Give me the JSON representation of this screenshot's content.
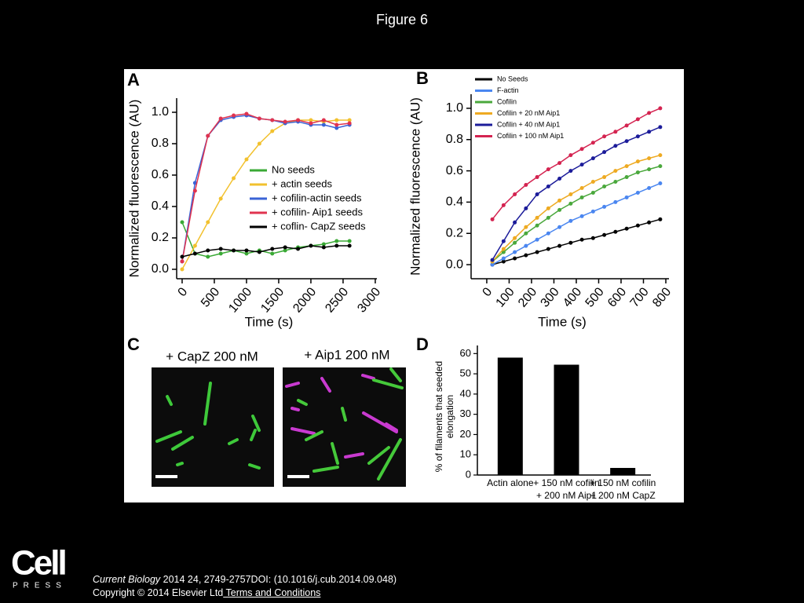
{
  "title": "Figure 6",
  "chart_data": [
    {
      "type": "line",
      "label": "A",
      "xlabel": "Time (s)",
      "ylabel": "Normalized fluorescence (AU)",
      "xlim": [
        -85,
        3025
      ],
      "ylim": [
        -0.06,
        1.09
      ],
      "xticks": [
        0,
        500,
        1000,
        1500,
        2000,
        2500,
        3000
      ],
      "yticks": [
        {
          "value": 0,
          "label": "0.0"
        },
        0.2,
        0.4,
        0.6,
        0.8,
        {
          "value": 1,
          "label": "1.0"
        }
      ],
      "x": [
        0,
        200,
        400,
        600,
        800,
        1000,
        1200,
        1400,
        1600,
        1800,
        2000,
        2200,
        2400,
        2600
      ],
      "series": [
        {
          "name": "No seeds",
          "color": "#3aa935",
          "values": [
            0.3,
            0.1,
            0.08,
            0.1,
            0.12,
            0.1,
            0.12,
            0.1,
            0.12,
            0.14,
            0.15,
            0.16,
            0.18,
            0.18
          ]
        },
        {
          "name": "+ actin seeds",
          "color": "#f2c12e",
          "values": [
            0,
            0.15,
            0.3,
            0.45,
            0.58,
            0.7,
            0.8,
            0.88,
            0.93,
            0.95,
            0.95,
            0.94,
            0.95,
            0.95
          ]
        },
        {
          "name": "+ cofilin-actin seeds",
          "color": "#3a63d6",
          "values": [
            0.05,
            0.55,
            0.85,
            0.95,
            0.97,
            0.98,
            0.96,
            0.95,
            0.93,
            0.94,
            0.92,
            0.92,
            0.9,
            0.92
          ]
        },
        {
          "name": "+ cofilin- Aip1 seeds",
          "color": "#e0334f",
          "values": [
            0.05,
            0.5,
            0.85,
            0.96,
            0.98,
            0.99,
            0.96,
            0.95,
            0.94,
            0.95,
            0.93,
            0.95,
            0.92,
            0.93
          ]
        },
        {
          "name": "+ coflin- CapZ seeds",
          "color": "#000000",
          "values": [
            0.08,
            0.1,
            0.12,
            0.13,
            0.12,
            0.12,
            0.11,
            0.13,
            0.14,
            0.13,
            0.15,
            0.14,
            0.15,
            0.15
          ]
        }
      ]
    },
    {
      "type": "line",
      "label": "B",
      "xlabel": "Time (s)",
      "ylabel": "Normalized fluorescence (AU)",
      "xlim": [
        -70,
        814
      ],
      "ylim": [
        -0.09,
        1.09
      ],
      "xticks": [
        0,
        100,
        200,
        300,
        400,
        500,
        600,
        700,
        800
      ],
      "yticks": [
        {
          "value": 0,
          "label": "0.0"
        },
        0.2,
        0.4,
        0.6,
        0.8,
        {
          "value": 1,
          "label": "1.0"
        }
      ],
      "x": [
        25,
        75,
        125,
        175,
        225,
        275,
        325,
        375,
        425,
        475,
        525,
        575,
        625,
        675,
        725,
        775
      ],
      "series": [
        {
          "name": "No Seeds",
          "color": "#000000",
          "values": [
            0,
            0.02,
            0.04,
            0.06,
            0.08,
            0.1,
            0.12,
            0.14,
            0.16,
            0.17,
            0.19,
            0.21,
            0.23,
            0.25,
            0.27,
            0.29
          ]
        },
        {
          "name": "F-actin",
          "color": "#4a86f0",
          "values": [
            0,
            0.04,
            0.08,
            0.12,
            0.16,
            0.2,
            0.24,
            0.28,
            0.31,
            0.34,
            0.37,
            0.4,
            0.43,
            0.46,
            0.49,
            0.52
          ]
        },
        {
          "name": "Cofilin",
          "color": "#4aa83c",
          "values": [
            0.02,
            0.08,
            0.14,
            0.2,
            0.25,
            0.3,
            0.35,
            0.39,
            0.43,
            0.46,
            0.5,
            0.53,
            0.56,
            0.59,
            0.61,
            0.63
          ]
        },
        {
          "name": "Cofilin + 20 nM Aip1",
          "color": "#eeaa22",
          "values": [
            0.02,
            0.1,
            0.17,
            0.24,
            0.3,
            0.36,
            0.41,
            0.45,
            0.49,
            0.53,
            0.56,
            0.6,
            0.63,
            0.66,
            0.68,
            0.7
          ]
        },
        {
          "name": "Cofilin + 40 nM Aip1",
          "color": "#1c1c9a",
          "values": [
            0.03,
            0.15,
            0.27,
            0.36,
            0.45,
            0.5,
            0.55,
            0.6,
            0.64,
            0.68,
            0.72,
            0.76,
            0.79,
            0.82,
            0.85,
            0.88
          ]
        },
        {
          "name": "Cofilin + 100 nM Aip1",
          "color": "#d42350",
          "values": [
            0.29,
            0.38,
            0.45,
            0.51,
            0.56,
            0.61,
            0.65,
            0.7,
            0.74,
            0.78,
            0.82,
            0.85,
            0.89,
            0.93,
            0.97,
            1
          ]
        }
      ]
    },
    {
      "type": "bar",
      "label": "D",
      "ylabel": [
        "% of filaments that seeded",
        "elongation"
      ],
      "ylim": [
        0,
        64
      ],
      "yticks": [
        0,
        10,
        20,
        30,
        40,
        50,
        60
      ],
      "color": "#000000",
      "categories": [
        [
          "Actin alone"
        ],
        [
          "+ 150 nM cofilin",
          "+ 200 nM Aip1"
        ],
        [
          "+ 150 nM cofilin",
          "+ 200 nM CapZ"
        ]
      ],
      "values": [
        58,
        54.5,
        3.5
      ]
    }
  ],
  "panel_c": {
    "label": "C",
    "images": [
      "+ CapZ 200 nM",
      "+ Aip1 200 nM"
    ]
  },
  "logo": {
    "name": "Cell",
    "sub": "PRESS"
  },
  "citation": {
    "journal": "Current Biology",
    "ref": " 2014 24, 2749-2757DOI: (10.1016/j.cub.2014.09.048)",
    "copyright": "Copyright © 2014 Elsevier Ltd",
    "link": " Terms and Conditions"
  }
}
